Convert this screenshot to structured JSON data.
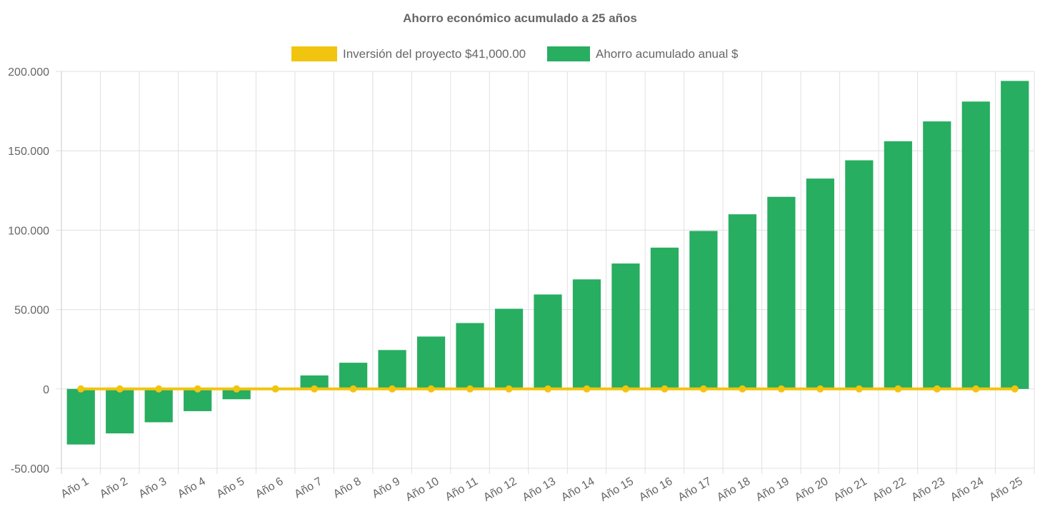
{
  "chart_data": {
    "type": "bar",
    "title": "Ahorro económico acumulado a 25 años",
    "categories": [
      "Año 1",
      "Año 2",
      "Año 3",
      "Año 4",
      "Año 5",
      "Año 6",
      "Año 7",
      "Año 8",
      "Año 9",
      "Año 10",
      "Año 11",
      "Año 12",
      "Año 13",
      "Año 14",
      "Año 15",
      "Año 16",
      "Año 17",
      "Año 18",
      "Año 19",
      "Año 20",
      "Año 21",
      "Año 22",
      "Año 23",
      "Año 24",
      "Año 25"
    ],
    "series": [
      {
        "name": "Inversión del proyecto $41,000.00",
        "type": "line",
        "color": "#F1C40F",
        "values": [
          0,
          0,
          0,
          0,
          0,
          0,
          0,
          0,
          0,
          0,
          0,
          0,
          0,
          0,
          0,
          0,
          0,
          0,
          0,
          0,
          0,
          0,
          0,
          0,
          0
        ]
      },
      {
        "name": "Ahorro acumulado anual $",
        "type": "bar",
        "color": "#27AE60",
        "values": [
          -35000,
          -28000,
          -21000,
          -14000,
          -6500,
          0,
          8500,
          16500,
          24500,
          33000,
          41500,
          50500,
          59500,
          69000,
          79000,
          89000,
          99500,
          110000,
          121000,
          132500,
          144000,
          156000,
          168500,
          181000,
          194000
        ]
      }
    ],
    "yticks": [
      "200.000",
      "150.000",
      "100.000",
      "50.000",
      "0",
      "-50.000"
    ],
    "ylim": [
      -50000,
      200000
    ],
    "grid": true,
    "legend_position": "top"
  }
}
